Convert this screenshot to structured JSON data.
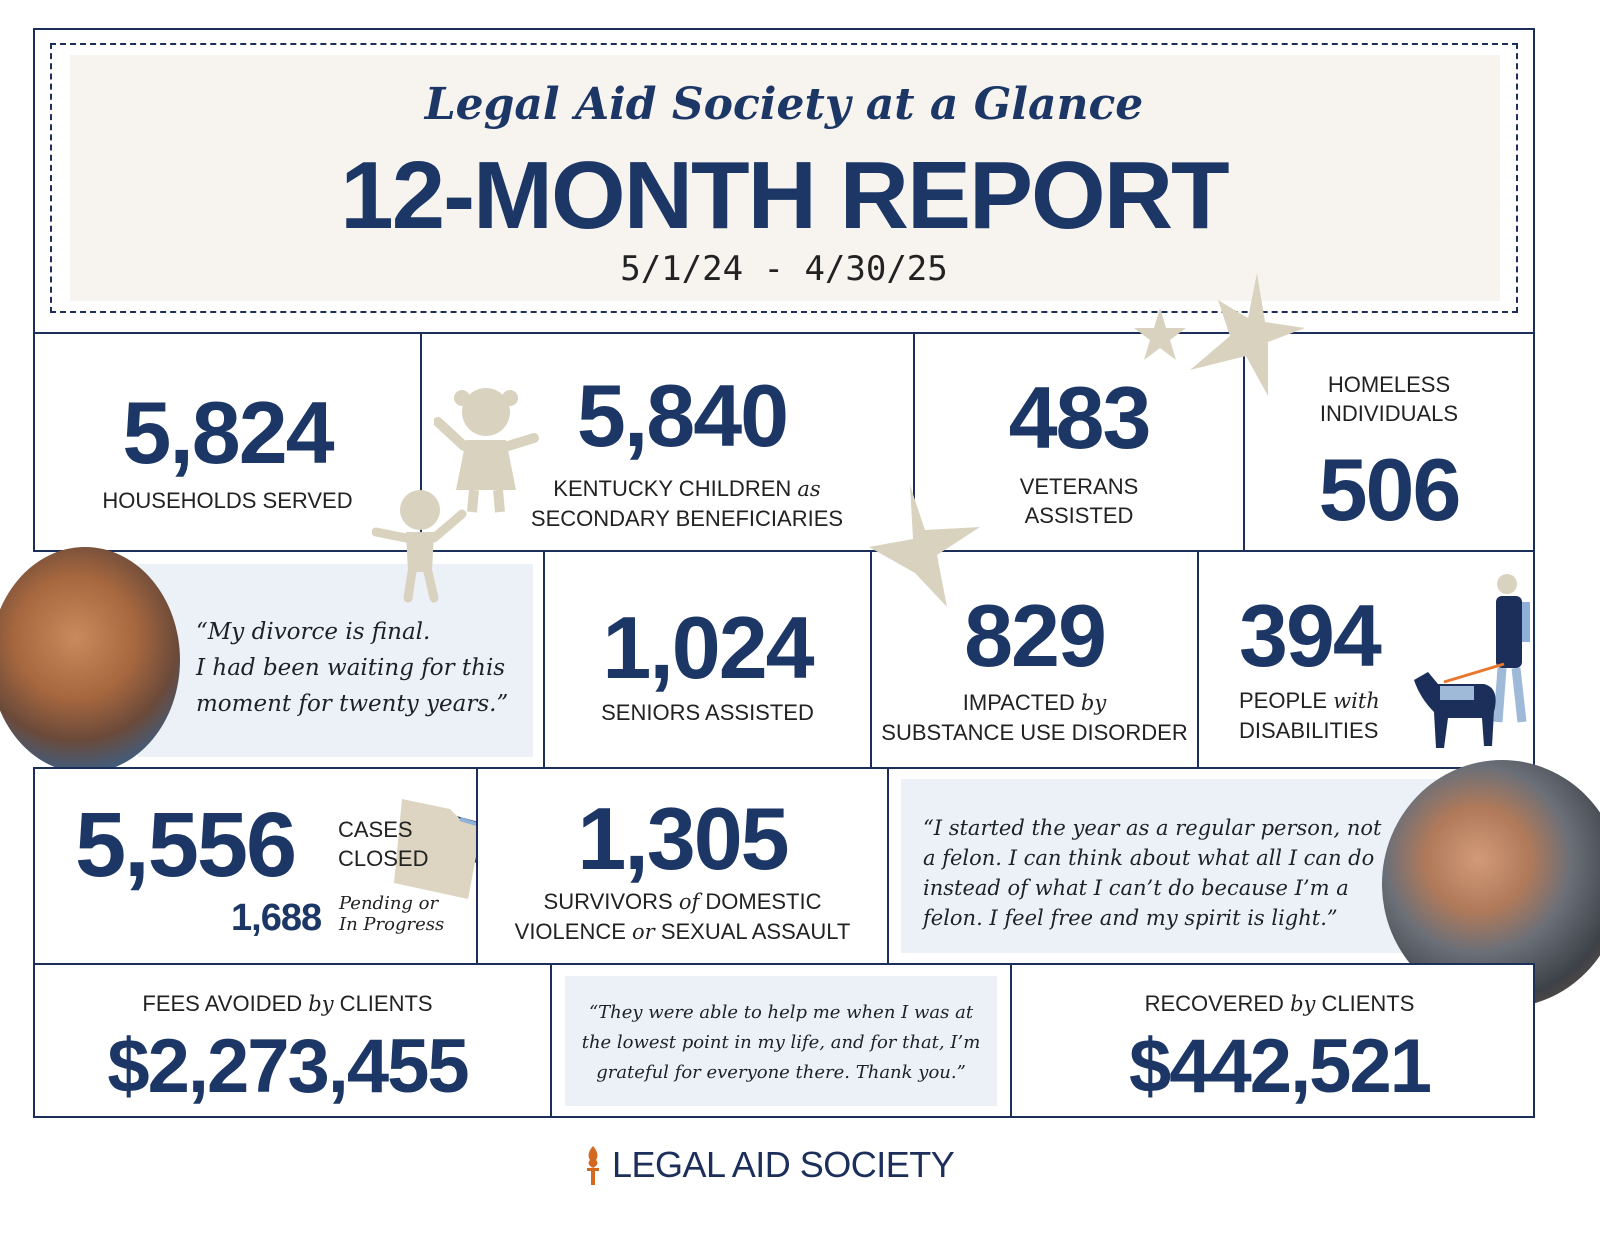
{
  "header": {
    "subtitle": "Legal Aid Society at a Glance",
    "title": "12-MONTH REPORT",
    "date_range": "5/1/24 - 4/30/25"
  },
  "stats": {
    "households": {
      "value": "5,824",
      "label": "HOUSEHOLDS SERVED"
    },
    "children": {
      "value": "5,840",
      "label_a": "KENTUCKY CHILDREN ",
      "label_it": "as",
      "label_b": "SECONDARY BENEFICIARIES"
    },
    "veterans": {
      "value": "483",
      "label_a": "VETERANS",
      "label_b": "ASSISTED"
    },
    "homeless": {
      "value": "506",
      "label_a": "HOMELESS",
      "label_b": "INDIVIDUALS"
    },
    "seniors": {
      "value": "1,024",
      "label": "SENIORS ASSISTED"
    },
    "substance": {
      "value": "829",
      "label_a": "IMPACTED ",
      "label_it": "by",
      "label_b": "SUBSTANCE USE DISORDER"
    },
    "disabilities": {
      "value": "394",
      "label_a": "PEOPLE ",
      "label_it": "with",
      "label_b": "DISABILITIES"
    },
    "cases": {
      "value": "5,556",
      "label_a": "CASES",
      "label_b": "CLOSED",
      "pending_value": "1,688",
      "pending_a": "Pending or",
      "pending_b": "In Progress"
    },
    "survivors": {
      "value": "1,305",
      "label_a": "SURVIVORS ",
      "label_it": "of",
      "label_b": " DOMESTIC",
      "label_c": "VIOLENCE ",
      "label_it2": "or",
      "label_d": " SEXUAL ASSAULT"
    },
    "fees": {
      "value": "$2,273,455",
      "label_a": "FEES AVOIDED ",
      "label_it": "by",
      "label_b": " CLIENTS"
    },
    "recovered": {
      "value": "$442,521",
      "label_a": "RECOVERED ",
      "label_it": "by",
      "label_b": " CLIENTS"
    }
  },
  "quotes": {
    "q1": [
      "“My divorce is final.",
      "I had been waiting for this",
      "moment for twenty years.”"
    ],
    "q2": [
      "“I started the year as a regular person, not",
      "a felon. I can think about what all I can do",
      "instead of what I can’t do because I’m a",
      "felon. I feel free and my spirit is light.”"
    ],
    "q3": [
      "“They were able to help me when I was at",
      "the lowest point in my life, and for that, I’m",
      "grateful for everyone there. Thank you.”"
    ]
  },
  "footer": {
    "logo_text": "LEGAL AID SOCIETY"
  },
  "colors": {
    "navy": "#1c3766",
    "beige": "#d9d2bf",
    "quote_bg": "#ecf1f8",
    "header_bg": "#f7f4f0",
    "torch": "#d2691e"
  }
}
